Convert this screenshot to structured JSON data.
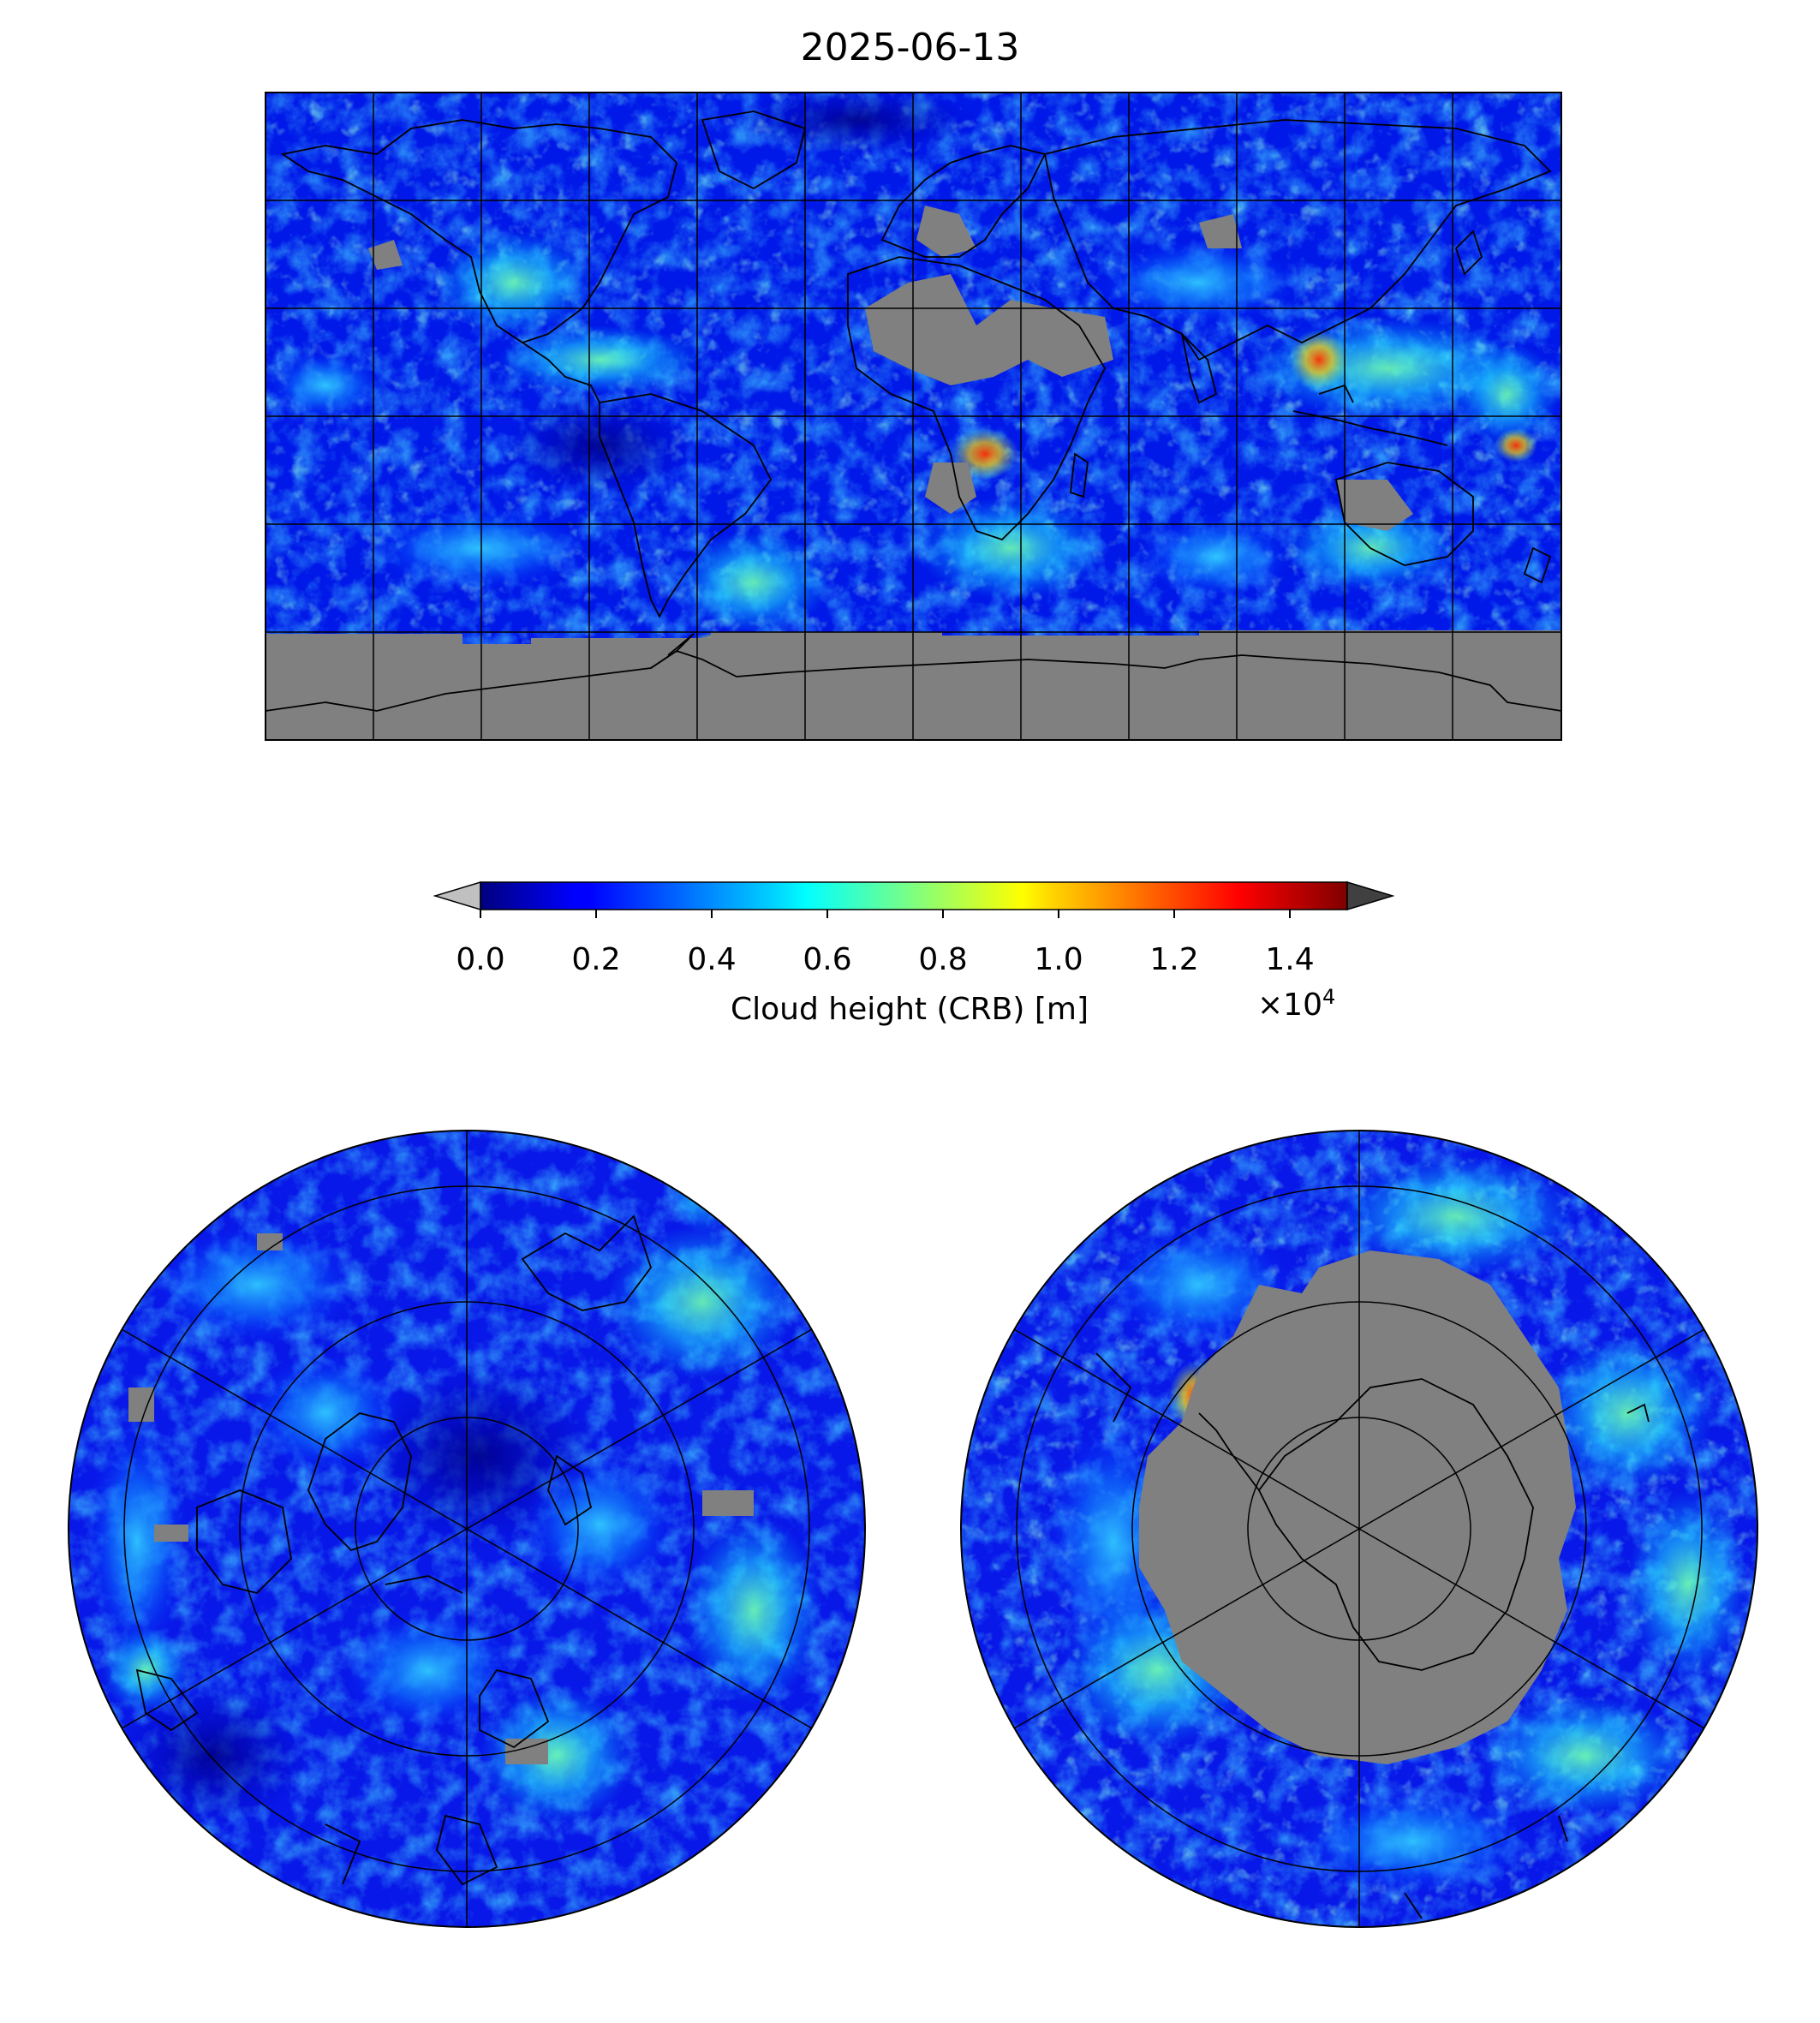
{
  "title": "2025-06-13",
  "colorbar": {
    "label": "Cloud height (CRB) [m]",
    "ticks": [
      "0.0",
      "0.2",
      "0.4",
      "0.6",
      "0.8",
      "1.0",
      "1.2",
      "1.4"
    ],
    "multiplier_base": "×10",
    "multiplier_exp": "4",
    "vmin": 0,
    "vmax": 15000,
    "colormap": "jet",
    "extend": "both",
    "under_color": "#c0c0c0",
    "over_color": "#404040"
  },
  "maps": [
    {
      "name": "global",
      "projection": "plate-carree",
      "land_fill_missing": "#808080",
      "gridlines": true
    },
    {
      "name": "north-polar",
      "projection": "north-polar-stereo",
      "gridlines": true
    },
    {
      "name": "south-polar",
      "projection": "south-polar-stereo",
      "missing_color": "#808080",
      "gridlines": true
    }
  ]
}
